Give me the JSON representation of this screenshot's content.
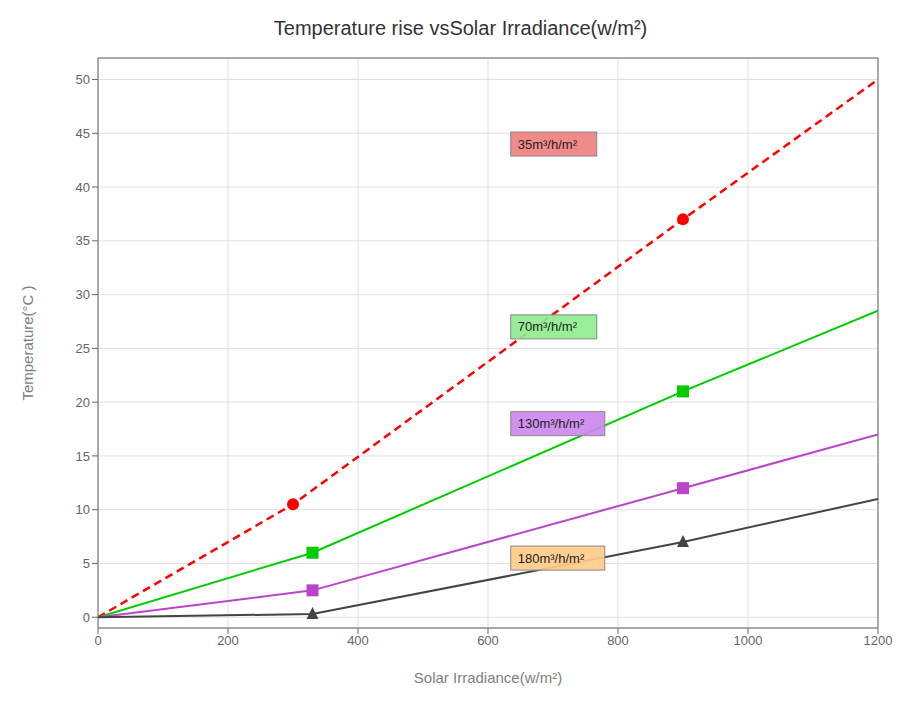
{
  "chart_data": {
    "type": "line",
    "title": "Temperature rise vsSolar Irradiance(w/m²)",
    "x_label": "Solar Irradiance(w/m²)",
    "y_label": "Temperature(°C )",
    "xlim": [
      0,
      1200
    ],
    "ylim": [
      -1,
      52
    ],
    "xticks": [
      0,
      200,
      400,
      600,
      800,
      1000,
      1200
    ],
    "yticks": [
      0,
      5,
      10,
      15,
      20,
      25,
      30,
      35,
      40,
      45,
      50
    ],
    "grid": true,
    "series": [
      {
        "name": "35m³/h/m²",
        "color": "#ff0000",
        "line_style": "dashed",
        "marker": "circle",
        "x": [
          0,
          300,
          900,
          1200
        ],
        "values": [
          0,
          10.5,
          37,
          50
        ]
      },
      {
        "name": "70m³/h/m²",
        "color": "#00cc00",
        "line_style": "solid",
        "marker": "square",
        "x": [
          0,
          330,
          900,
          1200
        ],
        "values": [
          0,
          6,
          21,
          28.5
        ]
      },
      {
        "name": "130m³/h/m²",
        "color": "#bb44cc",
        "line_style": "solid",
        "marker": "square",
        "x": [
          0,
          330,
          900,
          1200
        ],
        "values": [
          0,
          2.5,
          12,
          17
        ]
      },
      {
        "name": "180m³/h/m²",
        "color": "#444444",
        "line_style": "solid",
        "marker": "triangle",
        "x": [
          0,
          330,
          900,
          1200
        ],
        "values": [
          0,
          0.3,
          7,
          11
        ]
      }
    ],
    "annotations": [
      {
        "text": "35m³/h/m²",
        "x": 635,
        "y": 44,
        "color": "#f08080"
      },
      {
        "text": "70m³/h/m²",
        "x": 635,
        "y": 27,
        "color": "#90ee90"
      },
      {
        "text": "130m³/h/m²",
        "x": 635,
        "y": 18,
        "color": "#cc88ee"
      },
      {
        "text": "180m³/h/m²",
        "x": 635,
        "y": 5.5,
        "color": "#ffcc88"
      }
    ]
  }
}
